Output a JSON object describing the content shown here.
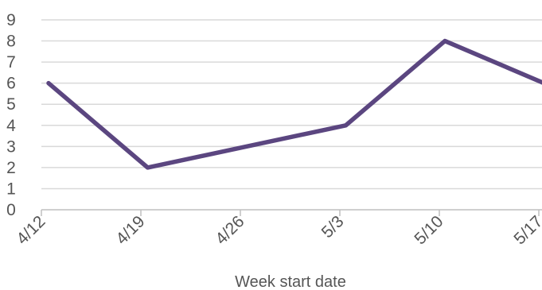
{
  "chart_data": {
    "type": "line",
    "xlabel": "Week start date",
    "ylabel": "",
    "ylim": [
      0,
      9
    ],
    "yticks": [
      "0",
      "1",
      "2",
      "3",
      "4",
      "5",
      "6",
      "7",
      "8",
      "9"
    ],
    "categories": [
      "4/12",
      "4/19",
      "4/26",
      "5/3",
      "5/10",
      "5/17"
    ],
    "x": [
      "4/12",
      "4/19",
      "4/26",
      "5/3",
      "5/10",
      "5/17"
    ],
    "series": [
      {
        "values": [
          6,
          2,
          3,
          4,
          8,
          6
        ]
      }
    ],
    "grid": true,
    "colors": {
      "line": "#5b4680",
      "grid": "#d9d9d9",
      "axis": "#bfbfbf",
      "text": "#555555"
    }
  }
}
